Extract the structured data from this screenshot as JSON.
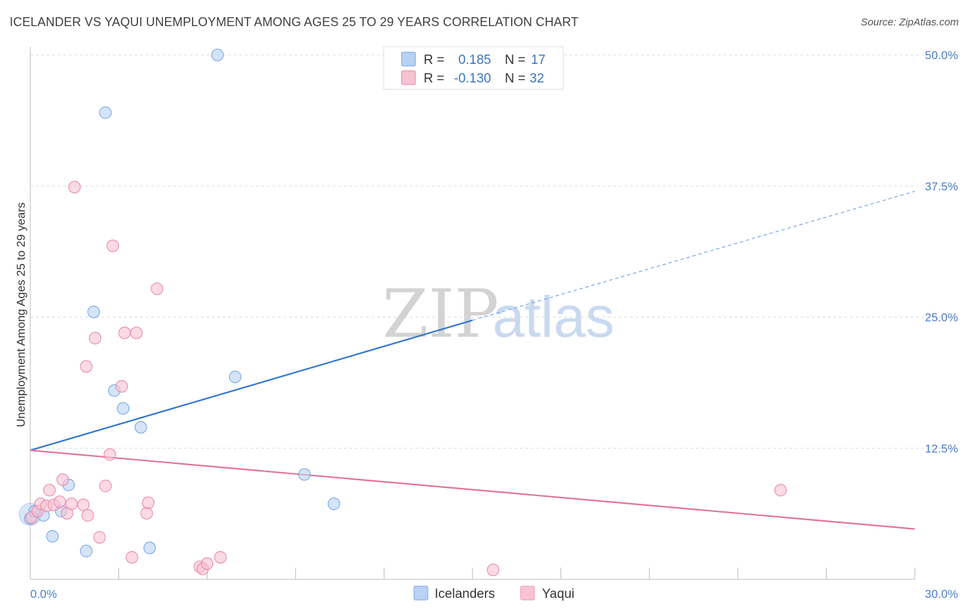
{
  "header": {
    "title": "ICELANDER VS YAQUI UNEMPLOYMENT AMONG AGES 25 TO 29 YEARS CORRELATION CHART",
    "source": "Source: ZipAtlas.com"
  },
  "watermark": {
    "zip": "ZIP",
    "atlas": "atlas"
  },
  "legend": {
    "rows": [
      {
        "r_label": "R =",
        "r_value": "0.185",
        "n_label": "N =",
        "n_value": "17",
        "color": "#a9c8f0"
      },
      {
        "r_label": "R =",
        "r_value": "-0.130",
        "n_label": "N =",
        "n_value": "32",
        "color": "#f5b8cb"
      }
    ]
  },
  "bottom_legend": {
    "items": [
      "Icelanders",
      "Yaqui"
    ]
  },
  "chart_data": {
    "type": "scatter",
    "title": "ICELANDER VS YAQUI UNEMPLOYMENT AMONG AGES 25 TO 29 YEARS CORRELATION CHART",
    "xlabel": "",
    "ylabel": "Unemployment Among Ages 25 to 29 years",
    "xlim": [
      0,
      30
    ],
    "ylim": [
      0,
      50
    ],
    "x_tick_labels": [
      "0.0%",
      "30.0%"
    ],
    "y_tick_labels": [
      "12.5%",
      "25.0%",
      "37.5%",
      "50.0%"
    ],
    "y_ticks": [
      12.5,
      25.0,
      37.5,
      50.0
    ],
    "grid": "horizontal dashed",
    "legend_placement": "top-center",
    "series": [
      {
        "name": "Icelanders",
        "color": "#6fa0e0",
        "fill": "#b9d2f3",
        "x": [
          0.0,
          0.45,
          0.75,
          1.3,
          1.05,
          1.9,
          2.15,
          2.55,
          2.85,
          3.15,
          3.75,
          4.05,
          6.35,
          6.95,
          9.3,
          10.3,
          0.15
        ],
        "y": [
          5.8,
          6.1,
          4.1,
          9.0,
          6.5,
          2.7,
          25.5,
          44.5,
          18.0,
          16.3,
          14.5,
          3.0,
          50.0,
          19.3,
          10.0,
          7.2,
          6.5
        ],
        "r": 0.185,
        "n": 17,
        "trend": {
          "x": [
            0,
            15
          ],
          "y": [
            12.3,
            24.7
          ],
          "extrapolated_x": [
            15,
            30
          ],
          "extrapolated_y": [
            24.7,
            37.0
          ]
        }
      },
      {
        "name": "Yaqui",
        "color": "#e882a3",
        "fill": "#f7c2d2",
        "x": [
          0.05,
          0.25,
          0.35,
          0.55,
          0.65,
          0.8,
          1.0,
          1.1,
          1.25,
          1.4,
          1.5,
          1.8,
          1.9,
          1.95,
          2.2,
          2.35,
          2.55,
          2.7,
          2.8,
          3.1,
          3.2,
          3.45,
          3.6,
          3.95,
          4.0,
          4.3,
          5.75,
          5.85,
          6.0,
          6.45,
          15.7,
          25.45
        ],
        "y": [
          5.9,
          6.5,
          7.2,
          7.0,
          8.5,
          7.1,
          7.4,
          9.5,
          6.3,
          7.2,
          37.4,
          7.1,
          20.3,
          6.1,
          23.0,
          4.0,
          8.9,
          11.9,
          31.8,
          18.4,
          23.5,
          2.1,
          23.5,
          6.3,
          7.3,
          27.7,
          1.2,
          1.0,
          1.5,
          2.1,
          0.9,
          8.5
        ],
        "r": -0.13,
        "n": 32,
        "trend": {
          "x": [
            0,
            30
          ],
          "y": [
            12.3,
            4.8
          ]
        }
      }
    ]
  }
}
